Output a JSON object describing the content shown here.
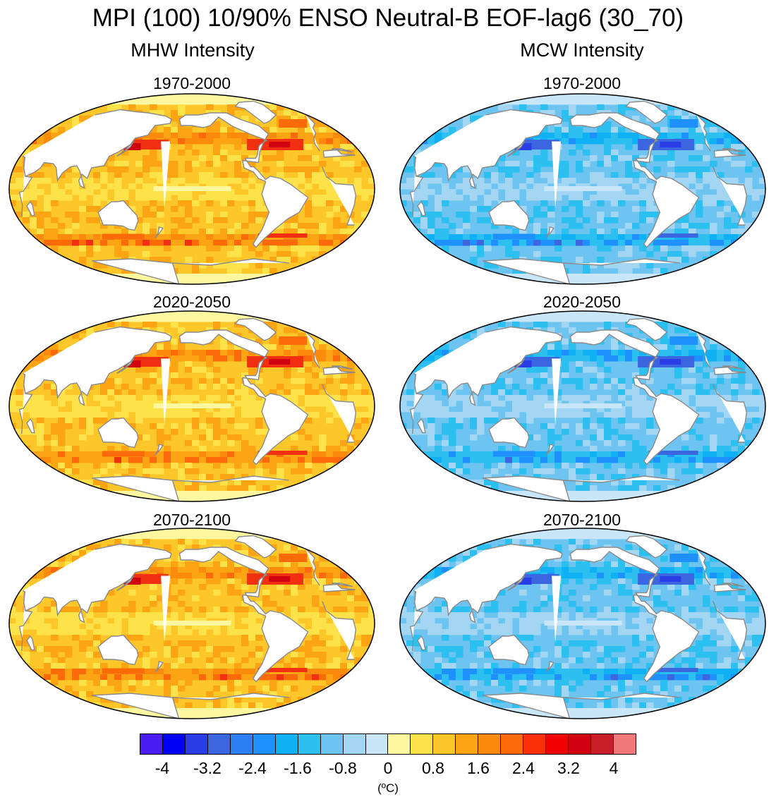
{
  "title": "MPI (100) 10/90% ENSO Neutral-B EOF-lag6 (30_70)",
  "columns": [
    {
      "title": "MHW Intensity",
      "scheme": "warm"
    },
    {
      "title": "MCW Intensity",
      "scheme": "cold"
    }
  ],
  "periods": [
    "1970-2000",
    "2020-2050",
    "2070-2100"
  ],
  "colorbar": {
    "colors": [
      "#4a1df5",
      "#0000f5",
      "#2a3ce6",
      "#3c66e0",
      "#2d7ef0",
      "#1e90ff",
      "#10b0f5",
      "#2cc0f0",
      "#6ec4f0",
      "#a3d6f2",
      "#c8e6f8",
      "#fdf8a0",
      "#fde24a",
      "#fdc72a",
      "#fca412",
      "#fc8a0d",
      "#fc6a0a",
      "#fc3008",
      "#f00000",
      "#d00010",
      "#c81e28",
      "#f07878"
    ],
    "tick_labels": [
      "-4",
      "-3.2",
      "-2.4",
      "-1.6",
      "-0.8",
      "0",
      "0.8",
      "1.6",
      "2.4",
      "3.2",
      "4"
    ],
    "unit": "(ºC)"
  },
  "chart_data": {
    "type": "heatmap",
    "title": "MPI (100) 10/90% ENSO Neutral-B EOF-lag6 (30_70)",
    "panels": [
      {
        "variable": "MHW Intensity",
        "period": "1970-2000",
        "range": [
          0.4,
          3.6
        ]
      },
      {
        "variable": "MHW Intensity",
        "period": "2020-2050",
        "range": [
          0.4,
          3.6
        ]
      },
      {
        "variable": "MHW Intensity",
        "period": "2070-2100",
        "range": [
          0.4,
          3.6
        ]
      },
      {
        "variable": "MCW Intensity",
        "period": "1970-2000",
        "range": [
          -3.6,
          -0.4
        ]
      },
      {
        "variable": "MCW Intensity",
        "period": "2020-2050",
        "range": [
          -3.6,
          -0.4
        ]
      },
      {
        "variable": "MCW Intensity",
        "period": "2070-2100",
        "range": [
          -3.6,
          -0.4
        ]
      }
    ],
    "colorbar_range": [
      -4.4,
      4.4
    ],
    "colorbar_step": 0.4,
    "unit": "ºC"
  }
}
